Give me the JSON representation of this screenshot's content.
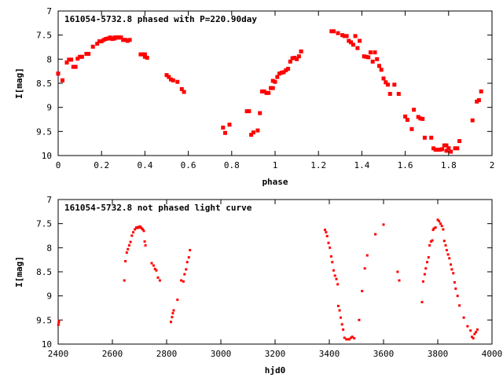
{
  "colors": {
    "points": "#ff0000",
    "axes": "#000000",
    "background": "#ffffff"
  },
  "chart_data": [
    {
      "type": "scatter",
      "title": "161054-5732.8 phased with P=220.90day",
      "xlabel": "phase",
      "ylabel": "I[mag]",
      "xlim": [
        0,
        2
      ],
      "ylim": [
        7,
        10
      ],
      "y_inverted": true,
      "grid": false,
      "legend": "none",
      "marker": "filled-square",
      "xticks": [
        "0",
        "0.2",
        "0.4",
        "0.6",
        "0.8",
        "1",
        "1.2",
        "1.4",
        "1.6",
        "1.8",
        "2"
      ],
      "yticks": [
        "7",
        "7.5",
        "8",
        "8.5",
        "9",
        "9.5",
        "10"
      ],
      "x": [
        0.0,
        0.02,
        0.04,
        0.05,
        0.07,
        0.08,
        0.09,
        0.1,
        0.13,
        0.16,
        0.18,
        0.19,
        0.2,
        0.21,
        0.22,
        0.23,
        0.24,
        0.25,
        0.26,
        0.27,
        0.28,
        0.29,
        0.3,
        0.31,
        0.32,
        0.33,
        0.38,
        0.39,
        0.4,
        0.41,
        0.5,
        0.51,
        0.52,
        0.53,
        0.55,
        0.57,
        0.58,
        0.76,
        0.77,
        0.79,
        0.88,
        0.89,
        0.9,
        0.92,
        0.93,
        0.94,
        0.97,
        0.98,
        0.99,
        1.0,
        1.01,
        1.02,
        1.03,
        1.04,
        1.05,
        1.06,
        1.07,
        1.08,
        1.09,
        1.1,
        1.11,
        1.12,
        1.26,
        1.29,
        1.31,
        1.32,
        1.33,
        1.34,
        1.35,
        1.36,
        1.38,
        1.41,
        1.42,
        1.43,
        1.44,
        1.45,
        1.47,
        1.48,
        1.49,
        1.5,
        1.51,
        1.52,
        1.53,
        1.6,
        1.61,
        1.63,
        1.64,
        1.66,
        1.67,
        1.68,
        1.69,
        1.73,
        1.74,
        1.75,
        1.77,
        1.78,
        1.79,
        1.8,
        1.81,
        1.83,
        1.85,
        1.91,
        1.93,
        1.94,
        1.95,
        0.0,
        0.02,
        0.04,
        0.06,
        0.11,
        0.14,
        0.24,
        0.26,
        0.27,
        0.28,
        0.3,
        0.4,
        0.87,
        0.95,
        0.96,
        0.99,
        1.12,
        1.27,
        1.37,
        1.39,
        1.46,
        1.55,
        1.57,
        1.72,
        1.76,
        1.79,
        1.8,
        1.84
      ],
      "y": [
        8.3,
        8.44,
        8.07,
        8.01,
        8.16,
        8.16,
        7.99,
        7.95,
        7.89,
        7.74,
        7.68,
        7.63,
        7.63,
        7.6,
        7.58,
        7.57,
        7.55,
        7.58,
        7.57,
        7.55,
        7.55,
        7.55,
        7.6,
        7.6,
        7.62,
        7.6,
        7.9,
        7.9,
        7.95,
        7.97,
        8.33,
        8.37,
        8.42,
        8.44,
        8.47,
        8.62,
        8.68,
        9.42,
        9.53,
        9.36,
        9.08,
        9.57,
        9.52,
        9.48,
        9.12,
        8.67,
        8.7,
        8.6,
        8.45,
        8.47,
        8.37,
        8.3,
        8.28,
        8.27,
        8.23,
        8.2,
        8.05,
        7.98,
        7.97,
        8.0,
        7.94,
        7.84,
        7.42,
        7.46,
        7.5,
        7.52,
        7.52,
        7.62,
        7.65,
        7.7,
        7.77,
        7.94,
        7.95,
        7.96,
        7.86,
        8.05,
        8.0,
        8.14,
        8.22,
        8.4,
        8.48,
        8.53,
        8.72,
        9.19,
        9.26,
        9.45,
        9.05,
        9.2,
        9.23,
        9.24,
        9.63,
        9.85,
        9.88,
        9.88,
        9.87,
        9.79,
        9.9,
        9.85,
        9.92,
        9.85,
        9.7,
        9.27,
        8.88,
        8.85,
        8.67,
        8.3,
        8.44,
        8.07,
        8.01,
        7.95,
        7.89,
        7.57,
        7.55,
        7.55,
        7.55,
        7.6,
        7.9,
        9.08,
        8.67,
        8.7,
        8.6,
        7.84,
        7.42,
        7.52,
        7.62,
        7.86,
        8.53,
        8.72,
        9.63,
        9.88,
        9.79,
        9.85,
        9.85
      ],
      "marker_size": 5
    },
    {
      "type": "scatter",
      "title": "161054-5732.8 not phased light curve",
      "xlabel": "hjd0",
      "ylabel": "I[mag]",
      "xlim": [
        2400,
        4000
      ],
      "ylim": [
        7,
        10
      ],
      "y_inverted": true,
      "grid": false,
      "legend": "none",
      "marker": "small-filled-square",
      "xticks": [
        "2400",
        "2600",
        "2800",
        "3000",
        "3200",
        "3400",
        "3600",
        "3800",
        "4000"
      ],
      "yticks": [
        "7",
        "7.5",
        "8",
        "8.5",
        "9",
        "9.5",
        "10"
      ],
      "x": [
        2401,
        2402,
        2403,
        2644,
        2648,
        2653,
        2657,
        2662,
        2667,
        2672,
        2677,
        2683,
        2688,
        2692,
        2695,
        2699,
        2702,
        2705,
        2708,
        2712,
        2716,
        2719,
        2722,
        2745,
        2752,
        2757,
        2762,
        2768,
        2775,
        2816,
        2820,
        2823,
        2826,
        2840,
        2854,
        2862,
        2866,
        2872,
        2876,
        2882,
        2886,
        3384,
        3388,
        3392,
        3397,
        3402,
        3407,
        3411,
        3416,
        3421,
        3426,
        3431,
        3433,
        3438,
        3442,
        3447,
        3451,
        3456,
        3463,
        3469,
        3474,
        3480,
        3485,
        3492,
        3510,
        3521,
        3531,
        3540,
        3570,
        3600,
        3652,
        3658,
        3742,
        3746,
        3752,
        3756,
        3761,
        3766,
        3770,
        3775,
        3780,
        3783,
        3786,
        3792,
        3800,
        3805,
        3810,
        3815,
        3820,
        3824,
        3829,
        3833,
        3838,
        3843,
        3848,
        3852,
        3857,
        3862,
        3866,
        3873,
        3880,
        3896,
        3910,
        3921,
        3926,
        3931,
        3936,
        3941,
        3946
      ],
      "y": [
        9.6,
        9.55,
        9.52,
        8.68,
        8.28,
        8.1,
        8.03,
        7.95,
        7.88,
        7.75,
        7.68,
        7.62,
        7.58,
        7.59,
        7.57,
        7.58,
        7.56,
        7.58,
        7.6,
        7.62,
        7.65,
        7.87,
        7.95,
        8.32,
        8.37,
        8.44,
        8.47,
        8.62,
        8.68,
        9.54,
        9.44,
        9.36,
        9.3,
        9.08,
        8.68,
        8.7,
        8.55,
        8.45,
        8.3,
        8.2,
        8.05,
        7.63,
        7.68,
        7.76,
        7.9,
        8.0,
        8.18,
        8.3,
        8.47,
        8.58,
        8.65,
        8.76,
        9.21,
        9.3,
        9.45,
        9.59,
        9.7,
        9.87,
        9.9,
        9.9,
        9.9,
        9.87,
        9.85,
        9.88,
        9.5,
        8.9,
        8.43,
        8.16,
        7.72,
        7.52,
        8.5,
        8.68,
        9.13,
        8.7,
        8.55,
        8.43,
        8.3,
        8.2,
        7.95,
        7.87,
        7.85,
        7.63,
        7.6,
        7.58,
        7.42,
        7.45,
        7.5,
        7.55,
        7.62,
        7.86,
        7.95,
        8.05,
        8.14,
        8.22,
        8.35,
        8.45,
        8.53,
        8.72,
        8.85,
        9.0,
        9.2,
        9.45,
        9.63,
        9.72,
        9.85,
        9.88,
        9.79,
        9.75,
        9.7
      ],
      "marker_size": 3
    }
  ]
}
